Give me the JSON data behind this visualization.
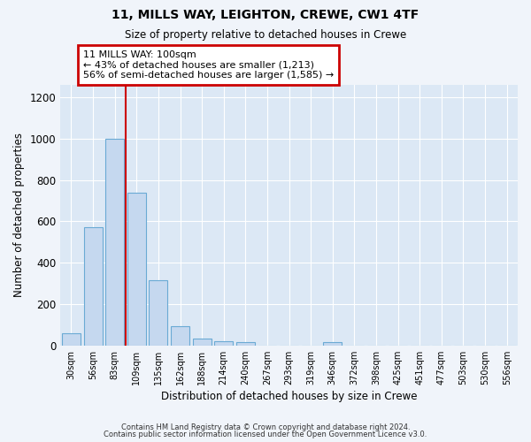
{
  "title1": "11, MILLS WAY, LEIGHTON, CREWE, CW1 4TF",
  "title2": "Size of property relative to detached houses in Crewe",
  "xlabel": "Distribution of detached houses by size in Crewe",
  "ylabel": "Number of detached properties",
  "categories": [
    "30sqm",
    "56sqm",
    "83sqm",
    "109sqm",
    "135sqm",
    "162sqm",
    "188sqm",
    "214sqm",
    "240sqm",
    "267sqm",
    "293sqm",
    "319sqm",
    "346sqm",
    "372sqm",
    "398sqm",
    "425sqm",
    "451sqm",
    "477sqm",
    "503sqm",
    "530sqm",
    "556sqm"
  ],
  "values": [
    60,
    570,
    1000,
    740,
    315,
    95,
    35,
    22,
    15,
    0,
    0,
    0,
    15,
    0,
    0,
    0,
    0,
    0,
    0,
    0,
    0
  ],
  "bar_color": "#c5d8ef",
  "bar_edge_color": "#6aaad4",
  "highlight_color": "#cc0000",
  "highlight_index": 3,
  "annotation_text": "11 MILLS WAY: 100sqm\n← 43% of detached houses are smaller (1,213)\n56% of semi-detached houses are larger (1,585) →",
  "annotation_box_color": "#ffffff",
  "annotation_box_edge": "#cc0000",
  "ylim": [
    0,
    1260
  ],
  "yticks": [
    0,
    200,
    400,
    600,
    800,
    1000,
    1200
  ],
  "footer1": "Contains HM Land Registry data © Crown copyright and database right 2024.",
  "footer2": "Contains public sector information licensed under the Open Government Licence v3.0.",
  "bg_color": "#dce8f5",
  "plot_bg_color": "#dce8f5"
}
